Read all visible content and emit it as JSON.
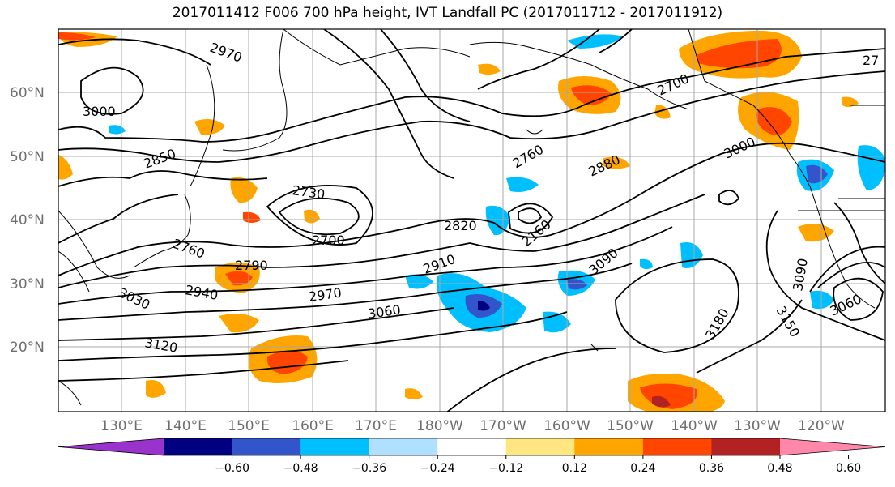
{
  "title": "2017011412 F006 700 hPa height, IVT Landfall PC (2017011712 - 2017011912)",
  "latitude_labels": [
    "60°N",
    "50°N",
    "40°N",
    "30°N",
    "20°N"
  ],
  "longitude_labels": [
    "130°E",
    "140°E",
    "150°E",
    "160°E",
    "170°E",
    "180°W",
    "170°W",
    "160°W",
    "150°W",
    "140°W",
    "130°W",
    "120°W"
  ],
  "contour_labels": [
    "2970",
    "3000",
    "2850",
    "2730",
    "2700",
    "2760",
    "2700",
    "2880",
    "3000",
    "27",
    "2820",
    "2160",
    "2790",
    "2760",
    "2910",
    "2940",
    "3030",
    "2970",
    "3090",
    "3060",
    "3120",
    "3180",
    "3150",
    "3090",
    "3060"
  ],
  "colorbar": {
    "colors": [
      "#9933cc",
      "#000080",
      "#3355cc",
      "#00bfff",
      "#b0e0ff",
      "#ffffff",
      "#ffe680",
      "#ffa500",
      "#ff4500",
      "#b22222",
      "#ff88aa"
    ],
    "tick_labels": [
      "−0.60",
      "−0.48",
      "−0.36",
      "−0.24",
      "−0.12",
      "0.12",
      "0.24",
      "0.36",
      "0.48",
      "0.60"
    ]
  },
  "palette": {
    "negative_strong": "#3355cc",
    "negative": "#00bfff",
    "negative_light": "#b0e0ff",
    "positive_light": "#ffe680",
    "positive": "#ffa500",
    "positive_strong": "#ff4500",
    "positive_max": "#b22222"
  }
}
